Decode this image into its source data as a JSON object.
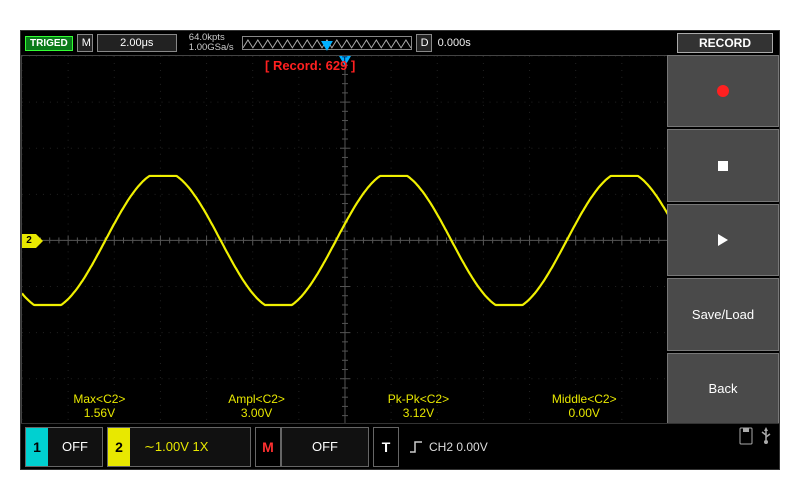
{
  "topbar": {
    "triged": "TRIGED",
    "m_label": "M",
    "timebase": "2.00μs",
    "sample_top": "64.0kpts",
    "sample_bot": "1.00GSa/s",
    "d_label": "D",
    "d_value": "0.000s",
    "record_btn": "RECORD"
  },
  "display": {
    "record_text": "[ Record: 629 ]",
    "channel_marker": "2",
    "grid": {
      "h_divs": 14,
      "v_divs": 8,
      "line_color": "#222222",
      "axis_color": "#555555"
    },
    "waveform": {
      "type": "sine",
      "color": "#f0f000",
      "line_width": 2.2,
      "amplitude_divs": 1.5,
      "period_divs": 5.0,
      "phase_deg": 230,
      "center_y_div": 4.0,
      "y_clip_top_div": 2.6,
      "y_clip_bot_div": 5.4,
      "n_points": 800
    },
    "trigger_marker_color": "#00b0ff",
    "channel_marker_color": "#e8e800"
  },
  "measurements": [
    {
      "label": "Max<C2>",
      "value": "1.56V"
    },
    {
      "label": "Ampl<C2>",
      "value": "3.00V"
    },
    {
      "label": "Pk-Pk<C2>",
      "value": "3.12V"
    },
    {
      "label": "Middle<C2>",
      "value": "0.00V"
    }
  ],
  "sidemenu": {
    "save_load": "Save/Load",
    "back": "Back"
  },
  "bottombar": {
    "ch1": {
      "num": "1",
      "value": "OFF"
    },
    "ch2": {
      "num": "2",
      "value": "∼1.00V 1X"
    },
    "m": "M",
    "m_value": "OFF",
    "t": "T",
    "trig_text": "CH2 0.00V"
  },
  "style": {
    "bg": "#000000",
    "panel": "#4a4a4a",
    "text": "#ffffff",
    "yellow": "#e8e800",
    "cyan": "#00d0d0",
    "red": "#ff2020"
  }
}
